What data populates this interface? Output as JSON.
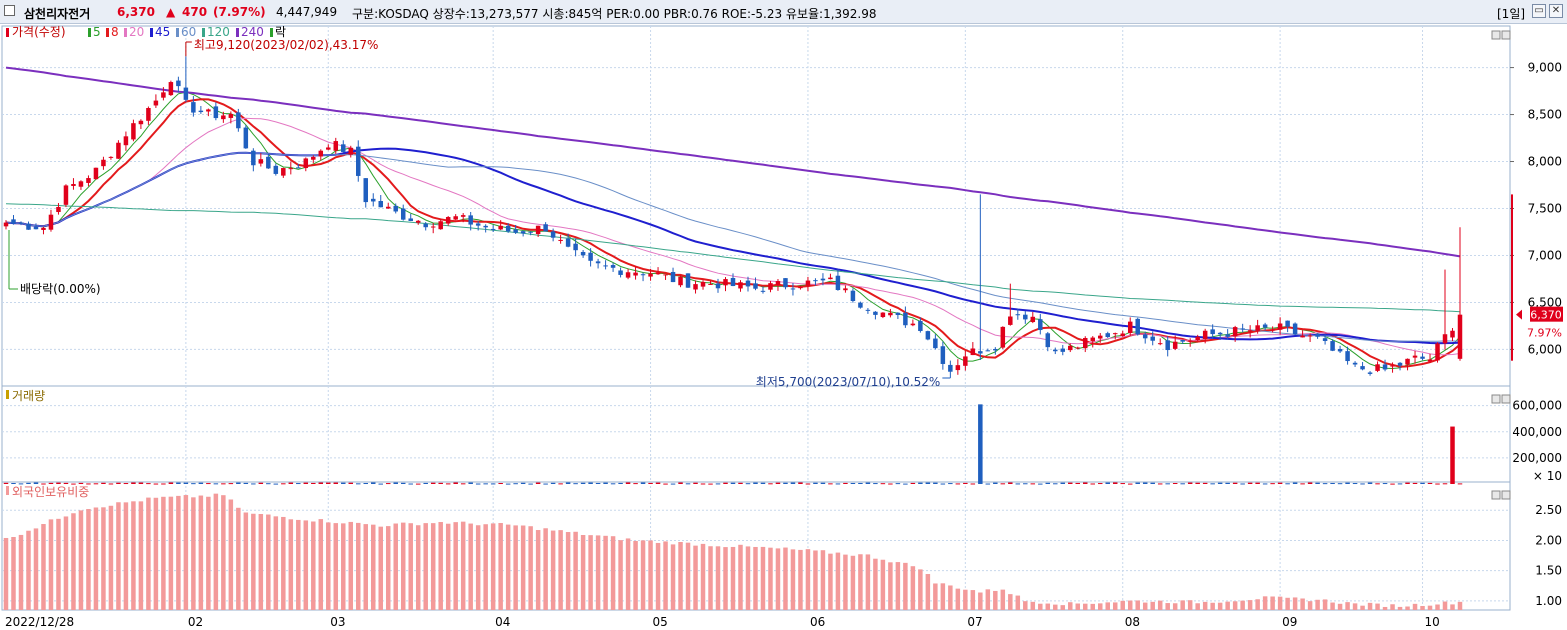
{
  "header": {
    "stock_name": "삼천리자전거",
    "price": "6,370",
    "change_arrow": "▲",
    "change": "470",
    "change_pct": "(7.97%)",
    "volume": "4,447,949",
    "info": "구분:KOSDAQ 상장수:13,273,577 시총:845억 PER:0.00 PBR:0.76 ROE:-5.23 유보율:1,392.98",
    "period": "[1일]",
    "window_buttons": [
      "▭",
      "✕"
    ]
  },
  "price_panel": {
    "legend_title": "가격(수정)",
    "ma_labels": [
      "5",
      "8",
      "20",
      "45",
      "60",
      "120",
      "240"
    ],
    "ma_colors": [
      "#2ca02c",
      "#e31a1c",
      "#e377c2",
      "#1f1fcf",
      "#6a8fc8",
      "#3aa68a",
      "#7b2fbe"
    ],
    "ex_dividend_label": "락",
    "high_annotation": "최고9,120(2023/02/02),43.17%",
    "low_annotation": "최저5,700(2023/07/10),10.52%",
    "dividend_annotation": "배당락(0.00%)",
    "current_price_tag": "6,370",
    "current_pct_tag": "7.97%"
  },
  "volume_panel": {
    "title": "거래량",
    "unit_label": "× 10"
  },
  "foreign_panel": {
    "title": "외국인보유비중"
  },
  "colors": {
    "up": "#e0001b",
    "down": "#1f5fbf",
    "foreign_bar": "#f39a9a",
    "grid": "#c8d8ec"
  },
  "chart_data": {
    "type": "candlestick",
    "x_axis_labels": [
      "2022/12/28",
      "02",
      "03",
      "04",
      "05",
      "06",
      "07",
      "08",
      "09",
      "10"
    ],
    "price_axis": {
      "ticks": [
        "6,000",
        "6,500",
        "7,000",
        "7,500",
        "8,000",
        "8,500",
        "9,000"
      ],
      "range": [
        5600,
        9400
      ]
    },
    "volume_axis": {
      "ticks": [
        "200,000",
        "400,000",
        "600,000"
      ],
      "range": [
        0,
        720000
      ]
    },
    "foreign_axis": {
      "ticks": [
        "1.00",
        "1.50",
        "2.00",
        "2.50"
      ],
      "range": [
        0.85,
        2.9
      ]
    },
    "num_days": 195,
    "close_anchors": [
      [
        0,
        7350
      ],
      [
        5,
        7300
      ],
      [
        8,
        7700
      ],
      [
        12,
        7900
      ],
      [
        16,
        8300
      ],
      [
        20,
        8650
      ],
      [
        22,
        8900
      ],
      [
        24,
        8600
      ],
      [
        27,
        8500
      ],
      [
        30,
        8500
      ],
      [
        33,
        8000
      ],
      [
        36,
        7900
      ],
      [
        40,
        8000
      ],
      [
        43,
        8200
      ],
      [
        46,
        8100
      ],
      [
        48,
        7600
      ],
      [
        52,
        7450
      ],
      [
        56,
        7350
      ],
      [
        60,
        7400
      ],
      [
        64,
        7300
      ],
      [
        68,
        7250
      ],
      [
        72,
        7300
      ],
      [
        75,
        7050
      ],
      [
        78,
        6900
      ],
      [
        82,
        6850
      ],
      [
        86,
        6820
      ],
      [
        90,
        6720
      ],
      [
        95,
        6700
      ],
      [
        100,
        6650
      ],
      [
        105,
        6700
      ],
      [
        110,
        6720
      ],
      [
        114,
        6500
      ],
      [
        118,
        6350
      ],
      [
        122,
        6250
      ],
      [
        126,
        5780
      ],
      [
        128,
        5950
      ],
      [
        132,
        6050
      ],
      [
        134,
        6400
      ],
      [
        137,
        6350
      ],
      [
        140,
        5950
      ],
      [
        145,
        6100
      ],
      [
        150,
        6250
      ],
      [
        155,
        6050
      ],
      [
        160,
        6150
      ],
      [
        165,
        6200
      ],
      [
        170,
        6220
      ],
      [
        175,
        6100
      ],
      [
        180,
        5800
      ],
      [
        184,
        5780
      ],
      [
        188,
        5900
      ],
      [
        190,
        5900
      ],
      [
        194,
        6370
      ]
    ],
    "volume_spikes": {
      "130": 610000,
      "193": 440000
    },
    "foreign_anchors": [
      [
        0,
        2.02
      ],
      [
        10,
        2.52
      ],
      [
        20,
        2.7
      ],
      [
        29,
        2.75
      ],
      [
        32,
        2.45
      ],
      [
        40,
        2.35
      ],
      [
        50,
        2.25
      ],
      [
        58,
        2.3
      ],
      [
        68,
        2.25
      ],
      [
        76,
        2.12
      ],
      [
        84,
        2.0
      ],
      [
        95,
        1.92
      ],
      [
        105,
        1.85
      ],
      [
        115,
        1.75
      ],
      [
        122,
        1.55
      ],
      [
        124,
        1.3
      ],
      [
        130,
        1.15
      ],
      [
        133,
        1.2
      ],
      [
        136,
        1.0
      ],
      [
        142,
        0.95
      ],
      [
        150,
        1.0
      ],
      [
        160,
        0.98
      ],
      [
        168,
        1.05
      ],
      [
        175,
        1.02
      ],
      [
        180,
        0.95
      ],
      [
        186,
        0.92
      ],
      [
        190,
        0.95
      ],
      [
        194,
        0.98
      ]
    ],
    "high": {
      "value": 9120,
      "date": "2023/02/02",
      "pct": "43.17%"
    },
    "low": {
      "value": 5700,
      "date": "2023/07/10",
      "pct": "10.52%"
    },
    "last": {
      "price": 6370,
      "change": 470,
      "pct": 7.97
    }
  }
}
